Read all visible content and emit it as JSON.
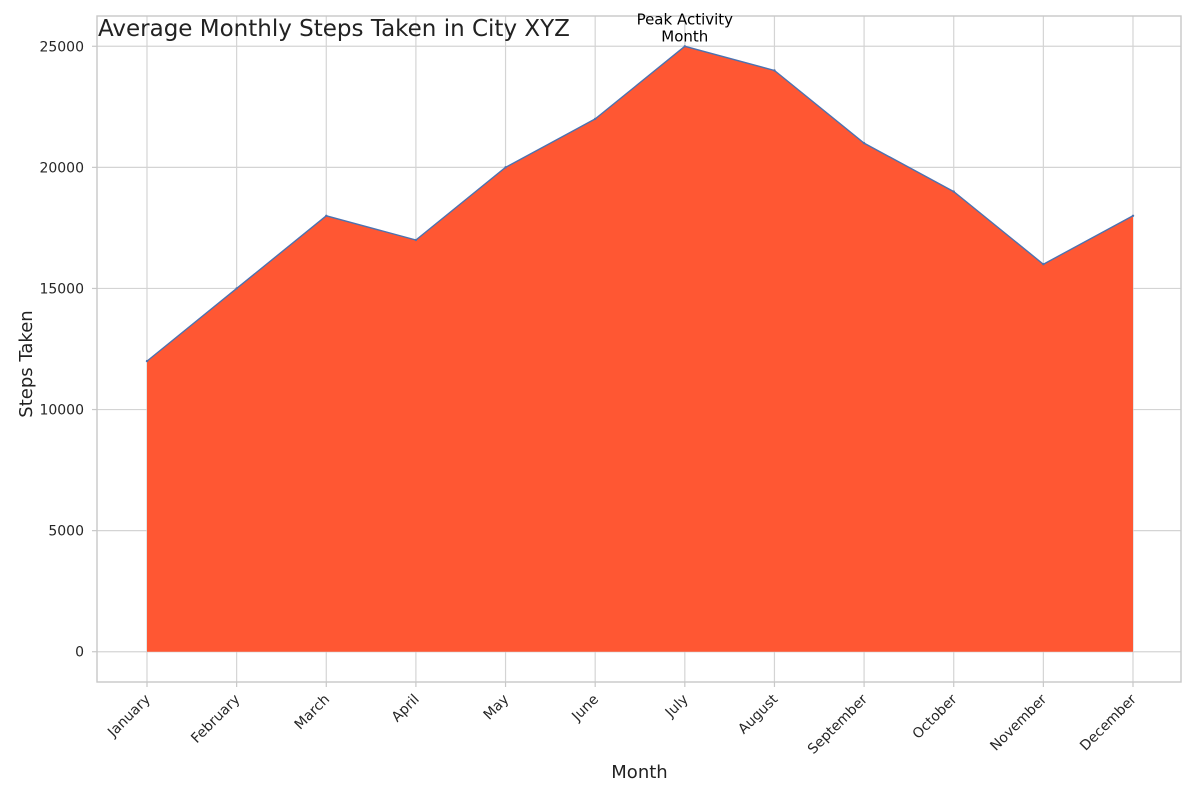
{
  "chart_data": {
    "type": "area",
    "title": "Average Monthly Steps Taken in City XYZ",
    "xlabel": "Month",
    "ylabel": "Steps Taken",
    "categories": [
      "January",
      "February",
      "March",
      "April",
      "May",
      "June",
      "July",
      "August",
      "September",
      "October",
      "November",
      "December"
    ],
    "values": [
      12000,
      15000,
      18000,
      17000,
      20000,
      22000,
      25000,
      24000,
      21000,
      19000,
      16000,
      18000
    ],
    "ylim": [
      -1250,
      26250
    ],
    "yticks": [
      0,
      5000,
      10000,
      15000,
      20000,
      25000
    ],
    "grid": true,
    "fill_color": "#ff5733",
    "line_color": "#4c72b0",
    "annotation": {
      "text_lines": [
        "Peak Activity",
        "Month"
      ],
      "category": "July",
      "value": 25000
    }
  }
}
